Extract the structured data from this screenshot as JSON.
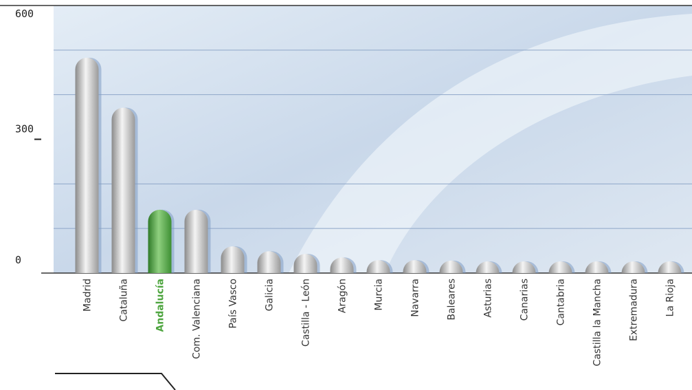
{
  "chart_data": {
    "type": "bar",
    "categories": [
      "Madrid",
      "Cataluña",
      "Andalucía",
      "Com. Valenciana",
      "País Vasco",
      "Galicia",
      "Castilla - León",
      "Aragón",
      "Murcia",
      "Navarra",
      "Baleares",
      "Asturias",
      "Canarias",
      "Cantabria",
      "Castilla la Mancha",
      "Extremadura",
      "La Rioja"
    ],
    "values": [
      483,
      371,
      142,
      142,
      60,
      49,
      43,
      35,
      29,
      29,
      28,
      26,
      25,
      22,
      20,
      18,
      18
    ],
    "color": "#b4b4b4",
    "highlight": "Andalucía",
    "highlight_color": "#4ea53f",
    "ylim": [
      0,
      600
    ],
    "yticks": [
      0,
      300,
      600
    ],
    "minor_yticks": [
      100,
      200,
      400,
      500
    ],
    "grid": true
  }
}
